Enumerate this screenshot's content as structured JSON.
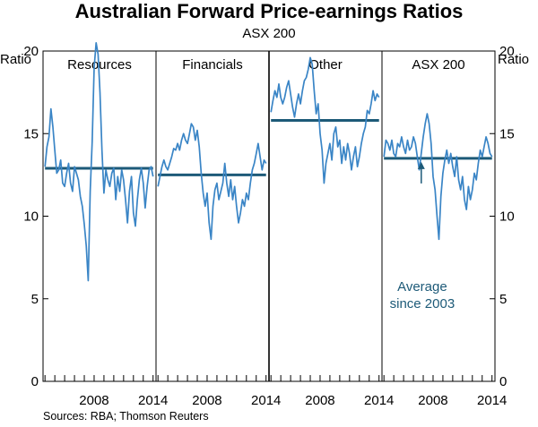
{
  "title": "Australian Forward Price-earnings Ratios",
  "subtitle": "ASX 200",
  "source": "Sources: RBA; Thomson Reuters",
  "colors": {
    "series": "#3a85c6",
    "average": "#1d5a78",
    "annotation": "#1d5a78",
    "axis": "#000000"
  },
  "chart_data": {
    "type": "line",
    "ylabel_left": "Ratio",
    "ylabel_right": "Ratio",
    "ylim": [
      0,
      20
    ],
    "yticks": [
      0,
      5,
      10,
      15,
      20
    ],
    "xlim": [
      2002.8,
      2014.3
    ],
    "xticks": [
      2008,
      2014
    ],
    "annotation": {
      "lines": [
        "Average",
        "since 2003"
      ],
      "panel": "ASX 200"
    },
    "panels": [
      {
        "name": "Resources",
        "average": 12.9,
        "series": [
          [
            2003.0,
            13.0
          ],
          [
            2003.2,
            14.2
          ],
          [
            2003.4,
            14.8
          ],
          [
            2003.6,
            16.5
          ],
          [
            2003.8,
            15.4
          ],
          [
            2004.0,
            14.0
          ],
          [
            2004.2,
            12.6
          ],
          [
            2004.4,
            12.8
          ],
          [
            2004.6,
            13.4
          ],
          [
            2004.8,
            12.0
          ],
          [
            2005.0,
            11.8
          ],
          [
            2005.2,
            12.6
          ],
          [
            2005.4,
            13.2
          ],
          [
            2005.6,
            12.0
          ],
          [
            2005.8,
            11.5
          ],
          [
            2006.0,
            13.0
          ],
          [
            2006.2,
            12.6
          ],
          [
            2006.4,
            12.2
          ],
          [
            2006.6,
            11.2
          ],
          [
            2006.8,
            10.6
          ],
          [
            2007.0,
            9.5
          ],
          [
            2007.2,
            8.2
          ],
          [
            2007.4,
            6.1
          ],
          [
            2007.6,
            11.5
          ],
          [
            2007.8,
            14.5
          ],
          [
            2008.0,
            19.0
          ],
          [
            2008.2,
            20.5
          ],
          [
            2008.4,
            19.8
          ],
          [
            2008.6,
            17.5
          ],
          [
            2008.8,
            14.0
          ],
          [
            2009.0,
            11.4
          ],
          [
            2009.2,
            12.8
          ],
          [
            2009.4,
            12.2
          ],
          [
            2009.6,
            11.8
          ],
          [
            2009.8,
            12.6
          ],
          [
            2010.0,
            12.9
          ],
          [
            2010.2,
            11.0
          ],
          [
            2010.4,
            12.4
          ],
          [
            2010.6,
            11.5
          ],
          [
            2010.8,
            12.8
          ],
          [
            2011.0,
            12.2
          ],
          [
            2011.2,
            11.0
          ],
          [
            2011.4,
            9.6
          ],
          [
            2011.6,
            11.5
          ],
          [
            2011.8,
            12.4
          ],
          [
            2012.0,
            10.2
          ],
          [
            2012.2,
            9.4
          ],
          [
            2012.4,
            11.0
          ],
          [
            2012.6,
            12.2
          ],
          [
            2012.8,
            12.9
          ],
          [
            2013.0,
            12.0
          ],
          [
            2013.2,
            10.5
          ],
          [
            2013.4,
            11.8
          ],
          [
            2013.6,
            12.8
          ],
          [
            2013.8,
            13.0
          ],
          [
            2014.0,
            12.4
          ]
        ]
      },
      {
        "name": "Financials",
        "average": 12.5,
        "series": [
          [
            2003.0,
            11.8
          ],
          [
            2003.2,
            12.4
          ],
          [
            2003.4,
            13.0
          ],
          [
            2003.6,
            13.4
          ],
          [
            2003.8,
            13.0
          ],
          [
            2004.0,
            12.8
          ],
          [
            2004.2,
            13.2
          ],
          [
            2004.4,
            13.6
          ],
          [
            2004.6,
            14.1
          ],
          [
            2004.8,
            14.0
          ],
          [
            2005.0,
            14.4
          ],
          [
            2005.2,
            14.0
          ],
          [
            2005.4,
            14.6
          ],
          [
            2005.6,
            15.0
          ],
          [
            2005.8,
            14.6
          ],
          [
            2006.0,
            14.4
          ],
          [
            2006.2,
            15.0
          ],
          [
            2006.4,
            15.6
          ],
          [
            2006.6,
            15.4
          ],
          [
            2006.8,
            14.6
          ],
          [
            2007.0,
            15.2
          ],
          [
            2007.2,
            14.2
          ],
          [
            2007.4,
            12.6
          ],
          [
            2007.6,
            11.4
          ],
          [
            2007.8,
            10.6
          ],
          [
            2008.0,
            11.4
          ],
          [
            2008.2,
            9.6
          ],
          [
            2008.4,
            8.6
          ],
          [
            2008.6,
            10.6
          ],
          [
            2008.8,
            11.6
          ],
          [
            2009.0,
            12.0
          ],
          [
            2009.2,
            11.0
          ],
          [
            2009.4,
            11.5
          ],
          [
            2009.6,
            12.0
          ],
          [
            2009.8,
            13.2
          ],
          [
            2010.0,
            12.0
          ],
          [
            2010.2,
            11.2
          ],
          [
            2010.4,
            12.2
          ],
          [
            2010.6,
            11.0
          ],
          [
            2010.8,
            11.8
          ],
          [
            2011.0,
            10.6
          ],
          [
            2011.2,
            9.6
          ],
          [
            2011.4,
            10.2
          ],
          [
            2011.6,
            11.0
          ],
          [
            2011.8,
            10.6
          ],
          [
            2012.0,
            11.4
          ],
          [
            2012.2,
            11.0
          ],
          [
            2012.4,
            12.0
          ],
          [
            2012.6,
            12.8
          ],
          [
            2012.8,
            13.2
          ],
          [
            2013.0,
            13.8
          ],
          [
            2013.2,
            14.4
          ],
          [
            2013.4,
            13.6
          ],
          [
            2013.6,
            12.8
          ],
          [
            2013.8,
            13.4
          ],
          [
            2014.0,
            13.2
          ]
        ]
      },
      {
        "name": "Other",
        "average": 15.8,
        "series": [
          [
            2003.0,
            16.3
          ],
          [
            2003.2,
            17.0
          ],
          [
            2003.4,
            17.6
          ],
          [
            2003.6,
            17.2
          ],
          [
            2003.8,
            18.0
          ],
          [
            2004.0,
            17.2
          ],
          [
            2004.2,
            16.8
          ],
          [
            2004.4,
            17.2
          ],
          [
            2004.6,
            17.8
          ],
          [
            2004.8,
            18.2
          ],
          [
            2005.0,
            17.4
          ],
          [
            2005.2,
            16.6
          ],
          [
            2005.4,
            16.0
          ],
          [
            2005.6,
            16.8
          ],
          [
            2005.8,
            17.4
          ],
          [
            2006.0,
            16.8
          ],
          [
            2006.2,
            17.6
          ],
          [
            2006.4,
            18.2
          ],
          [
            2006.6,
            18.4
          ],
          [
            2006.8,
            18.9
          ],
          [
            2007.0,
            19.6
          ],
          [
            2007.2,
            19.2
          ],
          [
            2007.4,
            17.6
          ],
          [
            2007.6,
            16.2
          ],
          [
            2007.8,
            16.8
          ],
          [
            2008.0,
            15.0
          ],
          [
            2008.2,
            14.0
          ],
          [
            2008.4,
            12.0
          ],
          [
            2008.6,
            13.2
          ],
          [
            2008.8,
            13.8
          ],
          [
            2009.0,
            14.4
          ],
          [
            2009.2,
            13.4
          ],
          [
            2009.4,
            15.0
          ],
          [
            2009.6,
            15.4
          ],
          [
            2009.8,
            14.2
          ],
          [
            2010.0,
            14.6
          ],
          [
            2010.2,
            13.2
          ],
          [
            2010.4,
            14.2
          ],
          [
            2010.6,
            13.4
          ],
          [
            2010.8,
            14.4
          ],
          [
            2011.0,
            13.8
          ],
          [
            2011.2,
            12.8
          ],
          [
            2011.4,
            13.6
          ],
          [
            2011.6,
            14.2
          ],
          [
            2011.8,
            13.0
          ],
          [
            2012.0,
            13.6
          ],
          [
            2012.2,
            14.4
          ],
          [
            2012.4,
            15.0
          ],
          [
            2012.6,
            15.4
          ],
          [
            2012.8,
            16.4
          ],
          [
            2013.0,
            16.2
          ],
          [
            2013.2,
            16.8
          ],
          [
            2013.4,
            17.6
          ],
          [
            2013.6,
            17.0
          ],
          [
            2013.8,
            17.4
          ],
          [
            2014.0,
            17.2
          ]
        ]
      },
      {
        "name": "ASX 200",
        "average": 13.5,
        "series": [
          [
            2003.0,
            13.6
          ],
          [
            2003.2,
            14.6
          ],
          [
            2003.4,
            14.4
          ],
          [
            2003.6,
            14.0
          ],
          [
            2003.8,
            14.6
          ],
          [
            2004.0,
            13.8
          ],
          [
            2004.2,
            13.6
          ],
          [
            2004.4,
            14.4
          ],
          [
            2004.6,
            14.2
          ],
          [
            2004.8,
            14.8
          ],
          [
            2005.0,
            14.2
          ],
          [
            2005.2,
            13.8
          ],
          [
            2005.4,
            14.6
          ],
          [
            2005.6,
            14.0
          ],
          [
            2005.8,
            14.2
          ],
          [
            2006.0,
            14.8
          ],
          [
            2006.2,
            14.4
          ],
          [
            2006.4,
            13.6
          ],
          [
            2006.6,
            12.8
          ],
          [
            2006.8,
            13.8
          ],
          [
            2007.0,
            14.8
          ],
          [
            2007.2,
            15.6
          ],
          [
            2007.4,
            16.2
          ],
          [
            2007.6,
            15.6
          ],
          [
            2007.8,
            14.4
          ],
          [
            2008.0,
            12.4
          ],
          [
            2008.2,
            11.6
          ],
          [
            2008.4,
            10.0
          ],
          [
            2008.6,
            8.6
          ],
          [
            2008.8,
            11.2
          ],
          [
            2009.0,
            12.6
          ],
          [
            2009.2,
            13.4
          ],
          [
            2009.4,
            14.0
          ],
          [
            2009.6,
            13.2
          ],
          [
            2009.8,
            13.8
          ],
          [
            2010.0,
            13.0
          ],
          [
            2010.2,
            12.4
          ],
          [
            2010.4,
            13.6
          ],
          [
            2010.6,
            12.2
          ],
          [
            2010.8,
            11.6
          ],
          [
            2011.0,
            12.4
          ],
          [
            2011.2,
            11.0
          ],
          [
            2011.4,
            10.4
          ],
          [
            2011.6,
            11.8
          ],
          [
            2011.8,
            11.0
          ],
          [
            2012.0,
            11.6
          ],
          [
            2012.2,
            12.6
          ],
          [
            2012.4,
            12.2
          ],
          [
            2012.6,
            13.2
          ],
          [
            2012.8,
            14.0
          ],
          [
            2013.0,
            13.6
          ],
          [
            2013.2,
            14.2
          ],
          [
            2013.4,
            14.8
          ],
          [
            2013.6,
            14.4
          ],
          [
            2013.8,
            13.8
          ],
          [
            2014.0,
            13.6
          ]
        ]
      }
    ]
  }
}
